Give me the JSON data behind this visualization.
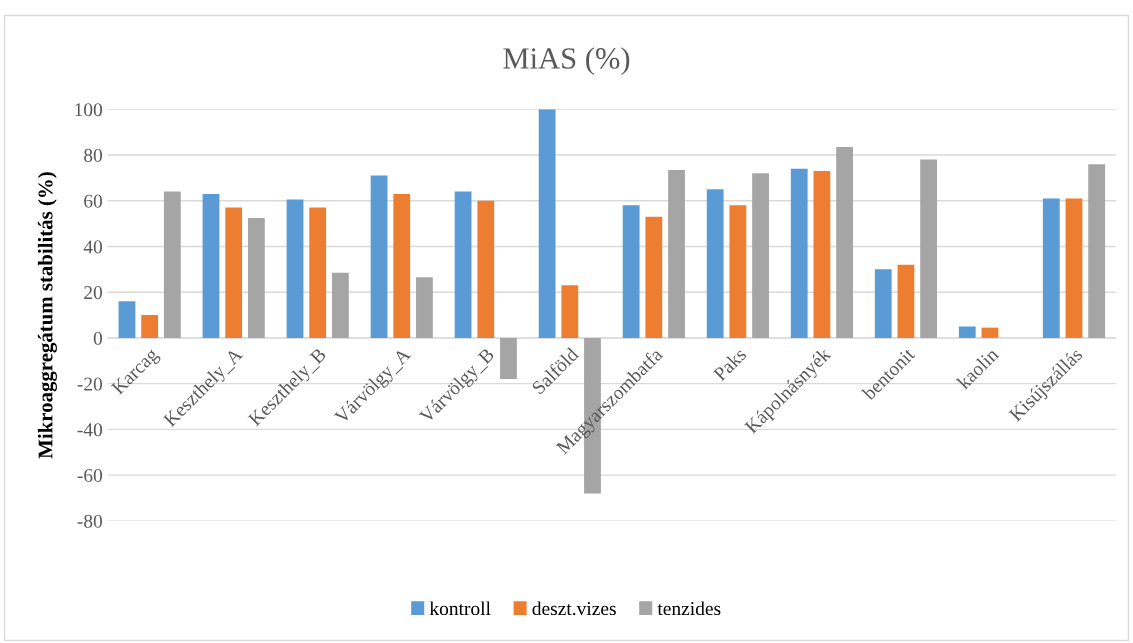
{
  "chart_data": {
    "type": "bar",
    "title": "MiAS (%)",
    "ylabel": "Mikroaggregátum stabilitás (%)",
    "categories": [
      "Karcag",
      "Keszthely_A",
      "Keszthely_B",
      "Várvölgy_A",
      "Várvölgy_B",
      "Salföld",
      "Magyarszombatfa",
      "Paks",
      "Kápolnásnyék",
      "bentonit",
      "kaolin",
      "Kisújszállás"
    ],
    "series": [
      {
        "name": "kontroll",
        "color": "#5b9bd5",
        "values": [
          16,
          63,
          60.5,
          71,
          64,
          100,
          58,
          65,
          74,
          30,
          5,
          61
        ]
      },
      {
        "name": "deszt.vizes",
        "color": "#ed7d31",
        "values": [
          10,
          57,
          57,
          63,
          60,
          23,
          53,
          58,
          73,
          32,
          4.5,
          61
        ]
      },
      {
        "name": "tenzides",
        "color": "#a5a5a5",
        "values": [
          64,
          52.5,
          28.5,
          26.5,
          -18,
          -68,
          73.5,
          72,
          83.5,
          78,
          null,
          76
        ]
      }
    ],
    "ylim": [
      -80,
      100
    ],
    "yticks": [
      -80,
      -60,
      -40,
      -20,
      0,
      20,
      40,
      60,
      80,
      100
    ],
    "grid": "y",
    "legend": "bottom"
  }
}
